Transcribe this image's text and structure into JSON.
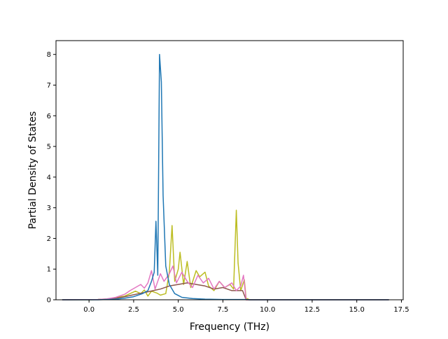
{
  "chart_data": {
    "type": "line",
    "title": "",
    "xlabel": "Frequency (THz)",
    "ylabel": "Partial Density of States",
    "xlim": [
      -1.85,
      17.6
    ],
    "ylim": [
      0,
      8.45
    ],
    "xticks": [
      "0.0",
      "2.5",
      "5.0",
      "7.5",
      "10.0",
      "12.5",
      "15.0",
      "17.5"
    ],
    "xtick_values": [
      0,
      2.5,
      5,
      7.5,
      10,
      12.5,
      15,
      17.5
    ],
    "yticks": [
      "0",
      "1",
      "2",
      "3",
      "4",
      "5",
      "6",
      "7",
      "8"
    ],
    "ytick_values": [
      0,
      1,
      2,
      3,
      4,
      5,
      6,
      7,
      8
    ],
    "grid": false,
    "legend": "none",
    "series": [
      {
        "color": "#bcbd22",
        "points": [
          [
            -1.5,
            0
          ],
          [
            0,
            0
          ],
          [
            0.5,
            0.01
          ],
          [
            1,
            0.03
          ],
          [
            1.5,
            0.06
          ],
          [
            1.8,
            0.1
          ],
          [
            2,
            0.12
          ],
          [
            2.3,
            0.2
          ],
          [
            2.6,
            0.28
          ],
          [
            2.9,
            0.2
          ],
          [
            3.1,
            0.32
          ],
          [
            3.3,
            0.12
          ],
          [
            3.5,
            0.28
          ],
          [
            3.8,
            0.22
          ],
          [
            4,
            0.15
          ],
          [
            4.3,
            0.2
          ],
          [
            4.5,
            0.9
          ],
          [
            4.65,
            2.42
          ],
          [
            4.8,
            0.6
          ],
          [
            5,
            1.0
          ],
          [
            5.1,
            1.55
          ],
          [
            5.3,
            0.5
          ],
          [
            5.5,
            1.25
          ],
          [
            5.7,
            0.4
          ],
          [
            6,
            0.95
          ],
          [
            6.2,
            0.75
          ],
          [
            6.5,
            0.9
          ],
          [
            6.7,
            0.45
          ],
          [
            7,
            0.3
          ],
          [
            7.3,
            0.6
          ],
          [
            7.6,
            0.4
          ],
          [
            7.9,
            0.5
          ],
          [
            8.1,
            0.35
          ],
          [
            8.25,
            2.92
          ],
          [
            8.35,
            1.2
          ],
          [
            8.5,
            0.3
          ],
          [
            8.7,
            0.65
          ],
          [
            8.8,
            0.05
          ],
          [
            9,
            0
          ],
          [
            12,
            0
          ],
          [
            16.8,
            0
          ]
        ]
      },
      {
        "color": "#8c564b",
        "points": [
          [
            -1.5,
            0
          ],
          [
            0.5,
            0.01
          ],
          [
            1,
            0.02
          ],
          [
            1.5,
            0.05
          ],
          [
            2,
            0.1
          ],
          [
            2.4,
            0.15
          ],
          [
            2.8,
            0.2
          ],
          [
            3.2,
            0.25
          ],
          [
            3.6,
            0.3
          ],
          [
            4,
            0.35
          ],
          [
            4.5,
            0.45
          ],
          [
            5,
            0.5
          ],
          [
            5.5,
            0.55
          ],
          [
            6,
            0.5
          ],
          [
            6.5,
            0.45
          ],
          [
            7,
            0.35
          ],
          [
            7.5,
            0.4
          ],
          [
            8,
            0.3
          ],
          [
            8.6,
            0.3
          ],
          [
            8.8,
            0
          ],
          [
            16.8,
            0
          ]
        ]
      },
      {
        "color": "#e377c2",
        "points": [
          [
            -1.5,
            0
          ],
          [
            0.5,
            0.01
          ],
          [
            1,
            0.03
          ],
          [
            1.5,
            0.08
          ],
          [
            2,
            0.18
          ],
          [
            2.3,
            0.3
          ],
          [
            2.6,
            0.4
          ],
          [
            2.9,
            0.5
          ],
          [
            3.1,
            0.38
          ],
          [
            3.3,
            0.55
          ],
          [
            3.5,
            0.95
          ],
          [
            3.7,
            0.35
          ],
          [
            4,
            0.85
          ],
          [
            4.2,
            0.6
          ],
          [
            4.5,
            0.85
          ],
          [
            4.7,
            1.1
          ],
          [
            4.9,
            0.55
          ],
          [
            5.2,
            0.9
          ],
          [
            5.5,
            0.6
          ],
          [
            5.8,
            0.4
          ],
          [
            6.1,
            0.8
          ],
          [
            6.4,
            0.55
          ],
          [
            6.7,
            0.7
          ],
          [
            7,
            0.35
          ],
          [
            7.3,
            0.6
          ],
          [
            7.6,
            0.4
          ],
          [
            8,
            0.55
          ],
          [
            8.25,
            0.3
          ],
          [
            8.5,
            0.45
          ],
          [
            8.65,
            0.8
          ],
          [
            8.8,
            0
          ],
          [
            16.8,
            0
          ]
        ]
      },
      {
        "color": "#1f77b4",
        "points": [
          [
            -1.5,
            0
          ],
          [
            0.5,
            0
          ],
          [
            1.5,
            0.02
          ],
          [
            2,
            0.05
          ],
          [
            2.5,
            0.1
          ],
          [
            3,
            0.2
          ],
          [
            3.3,
            0.3
          ],
          [
            3.5,
            0.6
          ],
          [
            3.65,
            0.9
          ],
          [
            3.75,
            2.56
          ],
          [
            3.85,
            0.8
          ],
          [
            3.95,
            8.0
          ],
          [
            4.05,
            7.1
          ],
          [
            4.15,
            3.4
          ],
          [
            4.3,
            1.1
          ],
          [
            4.5,
            0.5
          ],
          [
            4.8,
            0.2
          ],
          [
            5.2,
            0.08
          ],
          [
            5.8,
            0.04
          ],
          [
            6.5,
            0.02
          ],
          [
            7.5,
            0.01
          ],
          [
            8.8,
            0.01
          ],
          [
            9,
            0
          ],
          [
            16.8,
            0
          ]
        ]
      }
    ]
  }
}
